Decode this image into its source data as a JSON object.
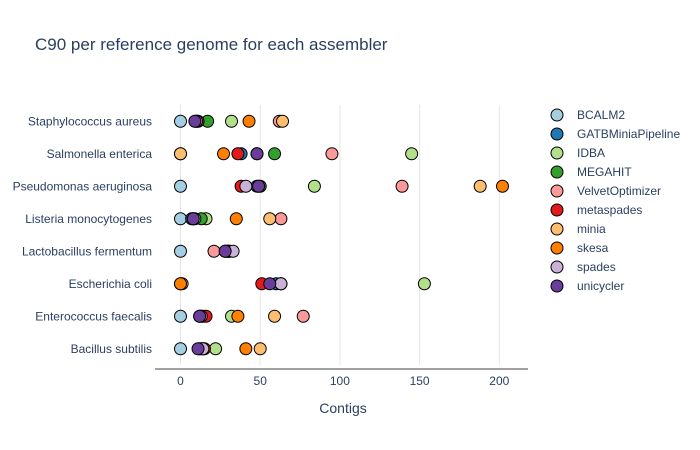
{
  "chart_data": {
    "type": "scatter",
    "title": "C90 per reference genome for each assembler",
    "xlabel": "Contigs",
    "ylabel": "",
    "xlim": [
      -16,
      218
    ],
    "xticks": [
      0,
      50,
      100,
      150,
      200
    ],
    "grid": true,
    "legend_position": "right",
    "categories": [
      "Staphylococcus aureus",
      "Salmonella enterica",
      "Pseudomonas aeruginosa",
      "Listeria monocytogenes",
      "Lactobacillus fermentum",
      "Escherichia coli",
      "Enterococcus faecalis",
      "Bacillus subtilis"
    ],
    "series": [
      {
        "name": "BCALM2",
        "color": "#a6cee3",
        "values": [
          0,
          0,
          0,
          0,
          0,
          0,
          0,
          0
        ]
      },
      {
        "name": "GATBMiniaPipeline",
        "color": "#1f78b4",
        "values": [
          10,
          38,
          48,
          7,
          30,
          60,
          12,
          14
        ]
      },
      {
        "name": "IDBA",
        "color": "#b2df8a",
        "values": [
          32,
          145,
          84,
          16,
          28,
          153,
          32,
          22
        ]
      },
      {
        "name": "MEGAHIT",
        "color": "#33a02c",
        "values": [
          17,
          59,
          50,
          13,
          30,
          63,
          14,
          13
        ]
      },
      {
        "name": "VelvetOptimizer",
        "color": "#fb9a99",
        "values": [
          62,
          95,
          139,
          63,
          21,
          63,
          77,
          12
        ]
      },
      {
        "name": "metaspades",
        "color": "#e31a1c",
        "values": [
          11,
          36,
          38,
          8,
          29,
          51,
          16,
          15
        ]
      },
      {
        "name": "minia",
        "color": "#fdbf6f",
        "values": [
          64,
          0,
          188,
          56,
          30,
          1,
          59,
          50
        ]
      },
      {
        "name": "skesa",
        "color": "#ff7f00",
        "values": [
          43,
          27,
          202,
          35,
          31,
          0,
          36,
          41
        ]
      },
      {
        "name": "spades",
        "color": "#cab2d6",
        "values": [
          10,
          48,
          41,
          9,
          33,
          63,
          13,
          14
        ]
      },
      {
        "name": "unicycler",
        "color": "#6a3d9a",
        "values": [
          9,
          48,
          49,
          8,
          28,
          56,
          12,
          11
        ]
      }
    ]
  }
}
